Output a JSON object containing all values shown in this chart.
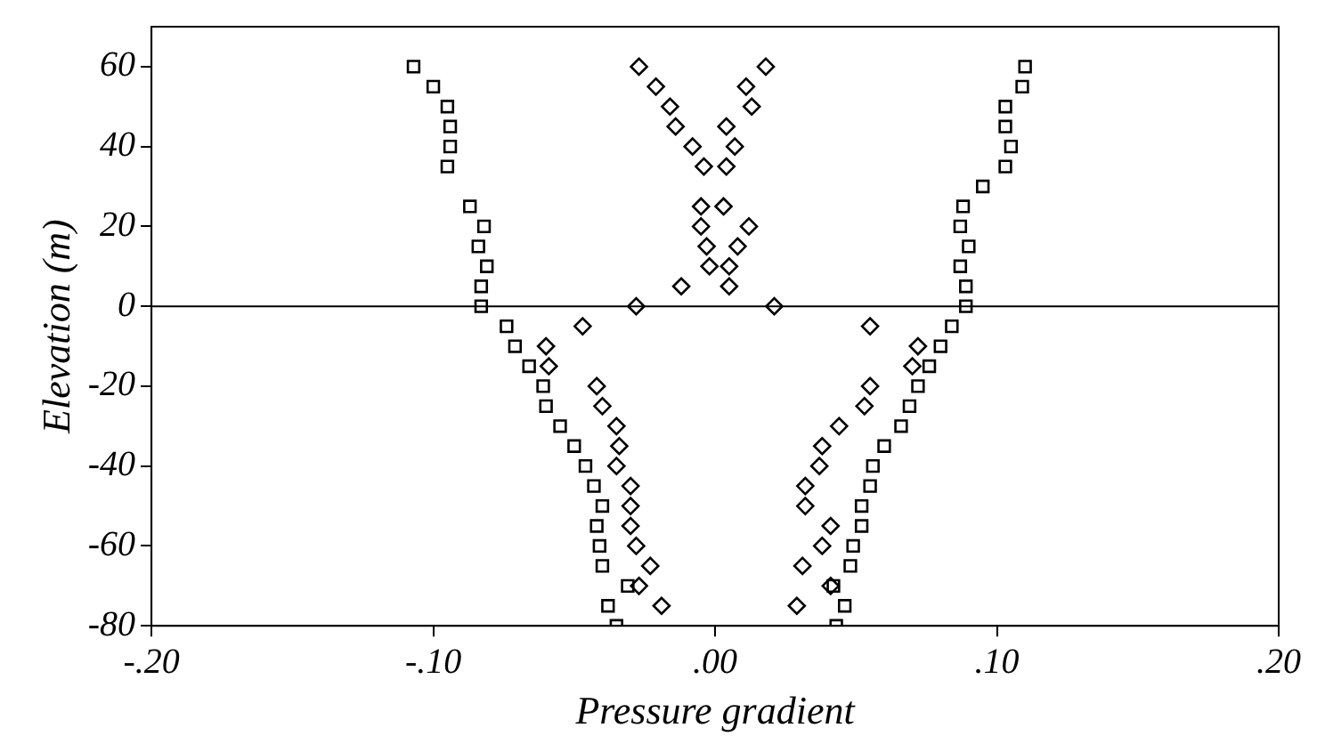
{
  "chart_data": {
    "type": "scatter",
    "xlabel": "Pressure gradient",
    "ylabel": "Elevation (m)",
    "xlim": [
      -0.2,
      0.2
    ],
    "ylim": [
      -80,
      70
    ],
    "xticks": [
      {
        "value": -0.2,
        "label": "-.20"
      },
      {
        "value": -0.1,
        "label": "-.10"
      },
      {
        "value": 0,
        "label": ".00"
      },
      {
        "value": 0.1,
        "label": ".10"
      },
      {
        "value": 0.2,
        "label": ".20"
      }
    ],
    "yticks": [
      -80,
      -60,
      -40,
      -20,
      0,
      20,
      40,
      60
    ],
    "grid": false,
    "legend": false,
    "ref_lines": [
      {
        "axis": "y",
        "value": 0,
        "color": "#000000"
      }
    ],
    "series": [
      {
        "color": "#000000",
        "marker": "square",
        "x": [
          -0.107,
          -0.1,
          -0.095,
          -0.094,
          -0.094,
          -0.095,
          -0.087,
          -0.082,
          -0.084,
          -0.081,
          -0.083,
          -0.083,
          -0.074,
          -0.071,
          -0.066,
          -0.061,
          -0.06,
          -0.055,
          -0.05,
          -0.046,
          -0.043,
          -0.04,
          -0.042,
          -0.041,
          -0.04,
          -0.031,
          -0.038,
          -0.035,
          0.11,
          0.109,
          0.103,
          0.103,
          0.105,
          0.103,
          0.095,
          0.088,
          0.087,
          0.09,
          0.087,
          0.089,
          0.089,
          0.084,
          0.08,
          0.076,
          0.072,
          0.069,
          0.066,
          0.06,
          0.056,
          0.055,
          0.052,
          0.052,
          0.049,
          0.048,
          0.042,
          0.046,
          0.043
        ],
        "values": [
          60,
          55,
          50,
          45,
          40,
          35,
          25,
          20,
          15,
          10,
          5,
          0,
          -5,
          -10,
          -15,
          -20,
          -25,
          -30,
          -35,
          -40,
          -45,
          -50,
          -55,
          -60,
          -65,
          -70,
          -75,
          -80,
          60,
          55,
          50,
          45,
          40,
          35,
          30,
          25,
          20,
          15,
          10,
          5,
          0,
          -5,
          -10,
          -15,
          -20,
          -25,
          -30,
          -35,
          -40,
          -45,
          -50,
          -55,
          -60,
          -65,
          -70,
          -75,
          -80
        ]
      },
      {
        "color": "#000000",
        "marker": "diamond",
        "x": [
          -0.027,
          -0.021,
          -0.016,
          -0.014,
          -0.008,
          -0.004,
          -0.005,
          -0.005,
          -0.003,
          -0.002,
          -0.012,
          -0.028,
          -0.047,
          -0.06,
          -0.059,
          -0.042,
          -0.04,
          -0.035,
          -0.034,
          -0.035,
          -0.03,
          -0.03,
          -0.03,
          -0.028,
          -0.023,
          -0.027,
          -0.019,
          0.018,
          0.011,
          0.013,
          0.004,
          0.007,
          0.004,
          0.003,
          0.012,
          0.008,
          0.005,
          0.005,
          0.021,
          0.055,
          0.072,
          0.07,
          0.055,
          0.053,
          0.044,
          0.038,
          0.037,
          0.032,
          0.032,
          0.041,
          0.038,
          0.031,
          0.041,
          0.029
        ],
        "values": [
          60,
          55,
          50,
          45,
          40,
          35,
          25,
          20,
          15,
          10,
          5,
          0,
          -5,
          -10,
          -15,
          -20,
          -25,
          -30,
          -35,
          -40,
          -45,
          -50,
          -55,
          -60,
          -65,
          -70,
          -75,
          60,
          55,
          50,
          45,
          40,
          35,
          25,
          20,
          15,
          10,
          5,
          0,
          -5,
          -10,
          -15,
          -20,
          -25,
          -30,
          -35,
          -40,
          -45,
          -50,
          -55,
          -60,
          -65,
          -70,
          -75
        ]
      }
    ]
  }
}
